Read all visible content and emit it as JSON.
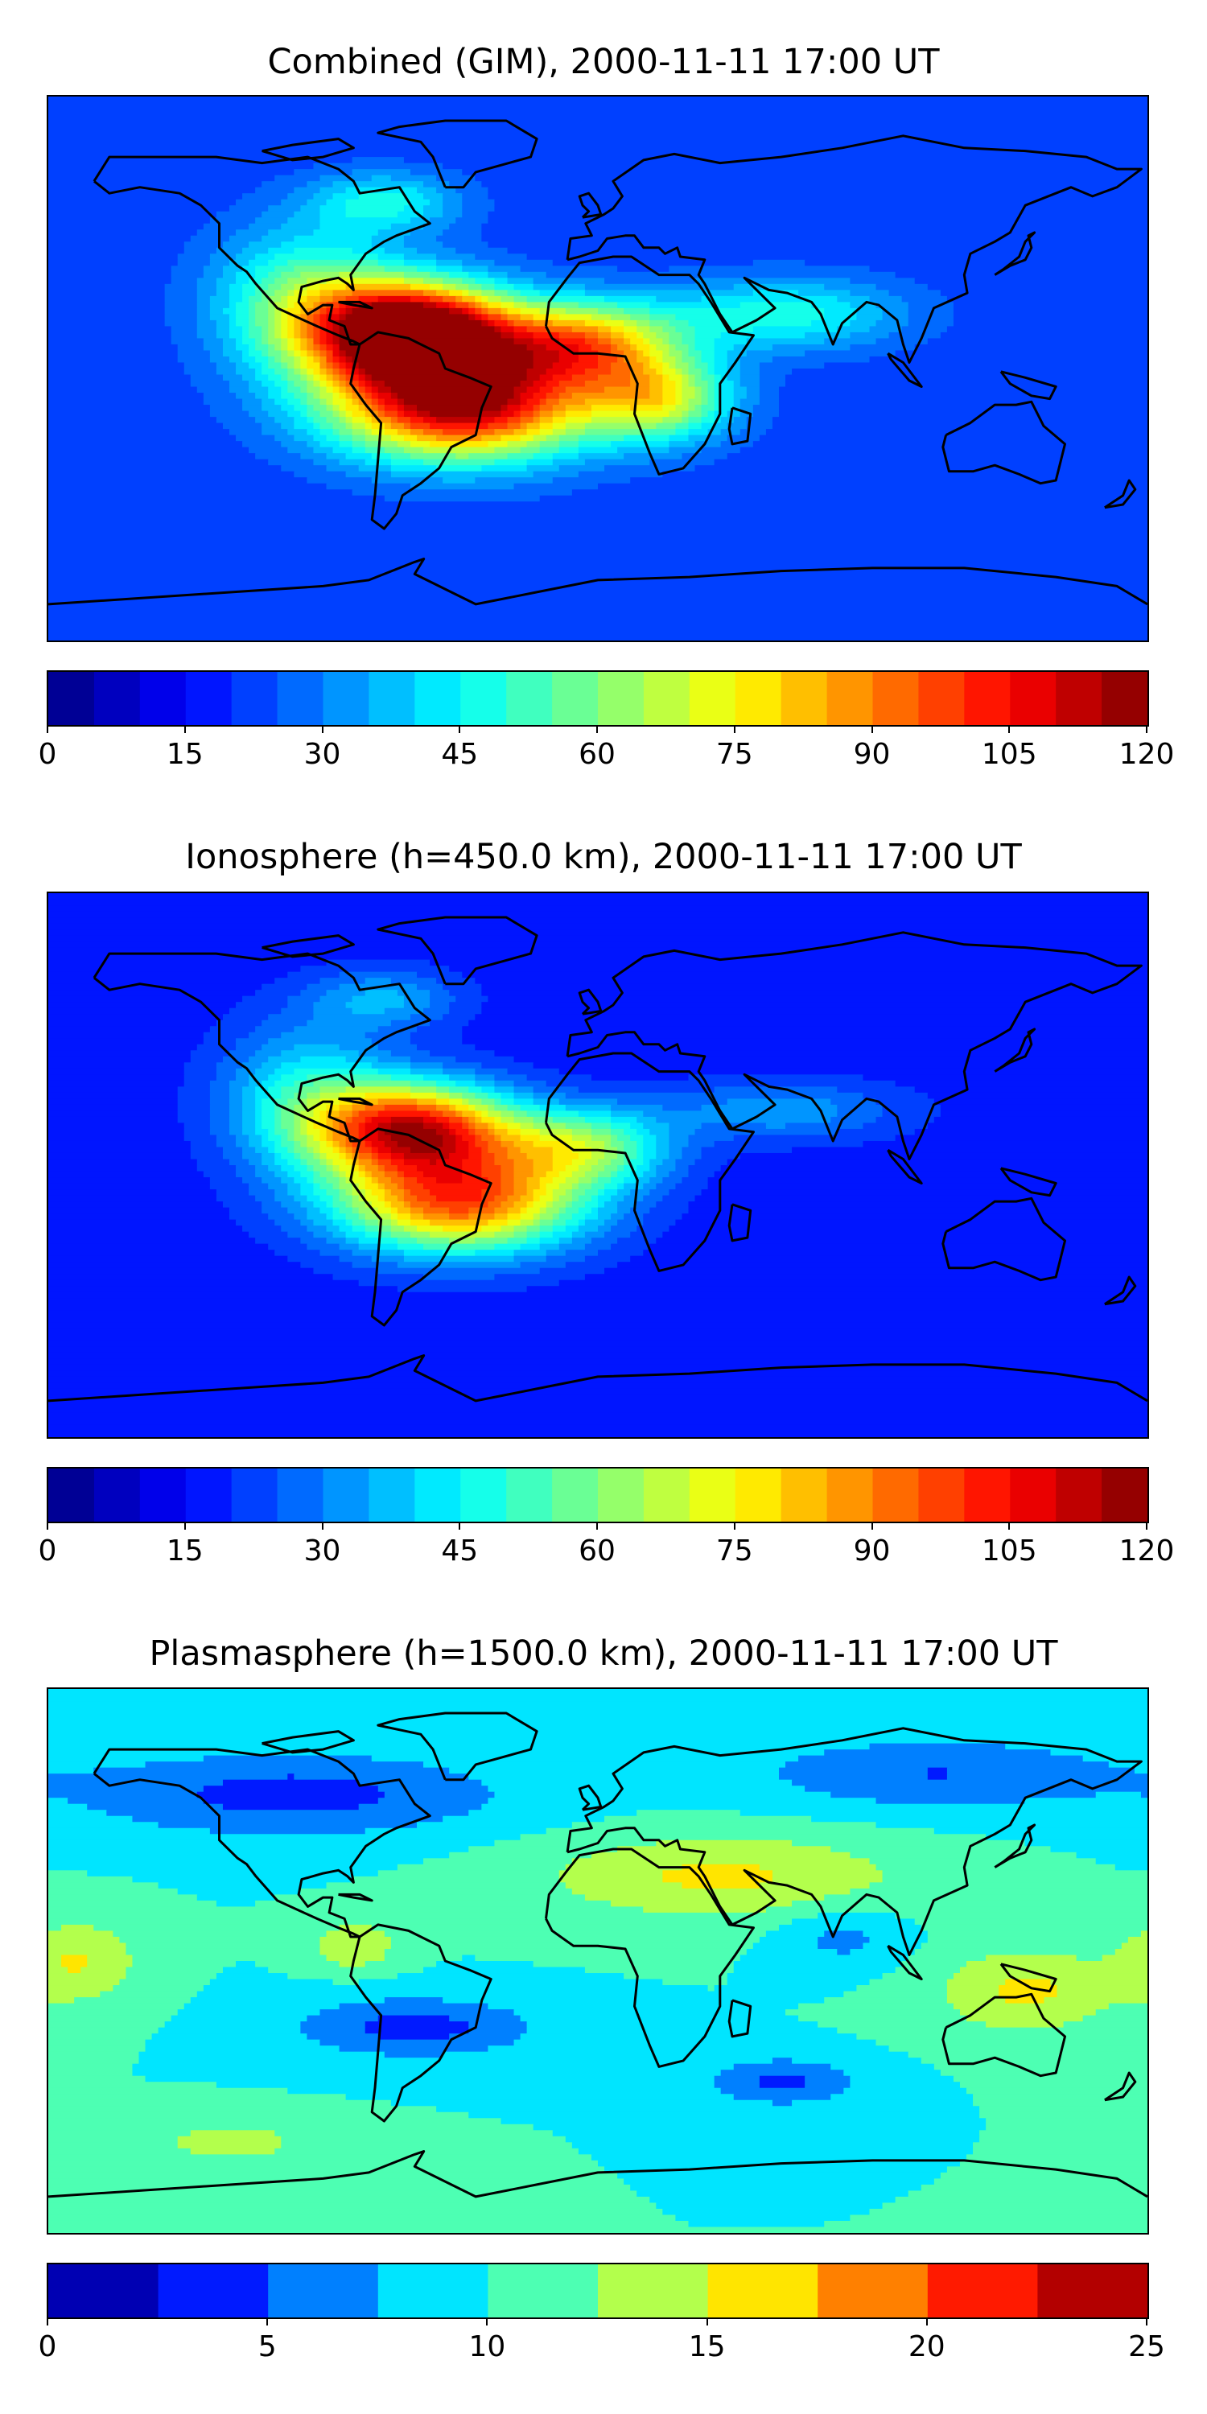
{
  "panels": [
    {
      "id": "combined",
      "title": "Combined (GIM), 2000-11-11 17:00 UT",
      "colorbar": {
        "min": 0,
        "max": 120,
        "levels": 24,
        "ticks": [
          "0",
          "15",
          "30",
          "45",
          "60",
          "75",
          "90",
          "105",
          "120"
        ]
      },
      "field": {
        "background": 0.18,
        "blobs": [
          {
            "lon": -60,
            "lat": 12,
            "slon": 32,
            "slat": 16,
            "v": 0.95
          },
          {
            "lon": -45,
            "lat": -12,
            "slon": 42,
            "slat": 18,
            "v": 0.78
          },
          {
            "lon": -5,
            "lat": 8,
            "slon": 30,
            "slat": 14,
            "v": 0.5
          },
          {
            "lon": 20,
            "lat": -10,
            "slon": 24,
            "slat": 14,
            "v": 0.38
          },
          {
            "lon": -95,
            "lat": 22,
            "slon": 30,
            "slat": 24,
            "v": 0.3
          },
          {
            "lon": 60,
            "lat": 18,
            "slon": 40,
            "slat": 12,
            "v": 0.22
          },
          {
            "lon": -70,
            "lat": 55,
            "slon": 25,
            "slat": 10,
            "v": 0.2
          }
        ]
      }
    },
    {
      "id": "ionosphere",
      "title": "Ionosphere  (h=450.0 km), 2000-11-11 17:00 UT",
      "colorbar": {
        "min": 0,
        "max": 120,
        "levels": 24,
        "ticks": [
          "0",
          "15",
          "30",
          "45",
          "60",
          "75",
          "90",
          "105",
          "120"
        ]
      },
      "field": {
        "background": 0.14,
        "blobs": [
          {
            "lon": -60,
            "lat": 12,
            "slon": 32,
            "slat": 15,
            "v": 0.72
          },
          {
            "lon": -45,
            "lat": -12,
            "slon": 40,
            "slat": 17,
            "v": 0.65
          },
          {
            "lon": -5,
            "lat": 6,
            "slon": 28,
            "slat": 13,
            "v": 0.35
          },
          {
            "lon": -95,
            "lat": 22,
            "slon": 28,
            "slat": 24,
            "v": 0.24
          },
          {
            "lon": 60,
            "lat": 18,
            "slon": 40,
            "slat": 10,
            "v": 0.14
          },
          {
            "lon": -70,
            "lat": 55,
            "slon": 25,
            "slat": 10,
            "v": 0.15
          }
        ]
      }
    },
    {
      "id": "plasmasphere",
      "title": "Plasmasphere (h=1500.0 km), 2000-11-11 17:00 UT",
      "colorbar": {
        "min": 0,
        "max": 25,
        "levels": 10,
        "ticks": [
          "0",
          "5",
          "10",
          "15",
          "20",
          "25"
        ]
      },
      "field": {
        "background": 0.4,
        "blobs": [
          {
            "lon": 40,
            "lat": 28,
            "slon": 60,
            "slat": 14,
            "v": 0.22
          },
          {
            "lon": 140,
            "lat": -10,
            "slon": 30,
            "slat": 14,
            "v": 0.22
          },
          {
            "lon": -170,
            "lat": 0,
            "slon": 20,
            "slat": 14,
            "v": 0.2
          },
          {
            "lon": -80,
            "lat": 5,
            "slon": 14,
            "slat": 8,
            "v": 0.2
          },
          {
            "lon": -60,
            "lat": -22,
            "slon": 40,
            "slat": 10,
            "v": -0.24
          },
          {
            "lon": -100,
            "lat": 55,
            "slon": 70,
            "slat": 14,
            "v": -0.24
          },
          {
            "lon": 110,
            "lat": 62,
            "slon": 60,
            "slat": 12,
            "v": -0.2
          },
          {
            "lon": 60,
            "lat": -40,
            "slon": 25,
            "slat": 8,
            "v": -0.22
          },
          {
            "lon": 80,
            "lat": 8,
            "slon": 20,
            "slat": 10,
            "v": -0.14
          },
          {
            "lon": -120,
            "lat": -60,
            "slon": 30,
            "slat": 8,
            "v": 0.14
          }
        ]
      }
    }
  ]
}
